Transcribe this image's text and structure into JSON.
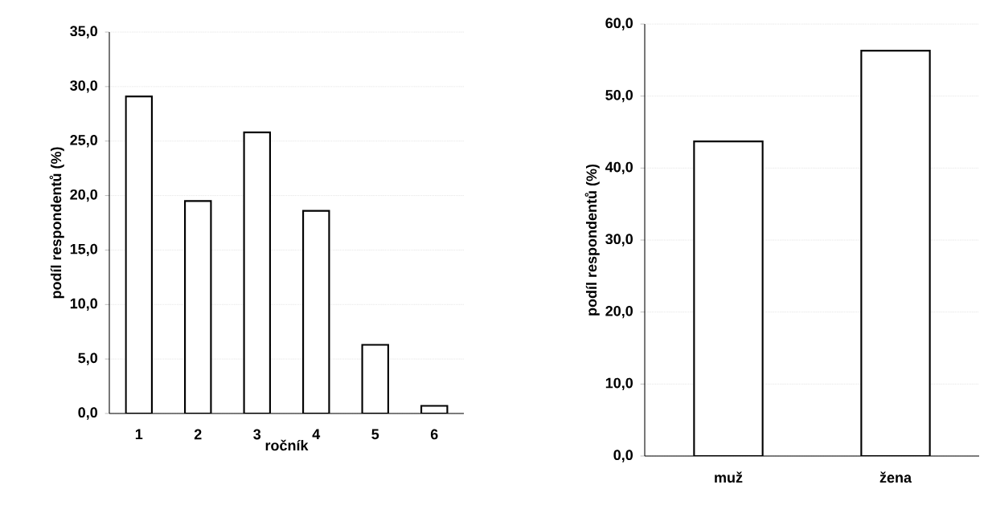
{
  "chart_data": [
    {
      "type": "bar",
      "xlabel": "ročník",
      "ylabel": "podíl respondentů (%)",
      "categories": [
        "1",
        "2",
        "3",
        "4",
        "5",
        "6"
      ],
      "values": [
        29.1,
        19.5,
        25.8,
        18.6,
        6.3,
        0.7
      ],
      "color": "#ffffff",
      "ylim": [
        0,
        35
      ],
      "yticks": [
        {
          "value": 0,
          "label": "0,0"
        },
        {
          "value": 5,
          "label": "5,0"
        },
        {
          "value": 10,
          "label": "10,0"
        },
        {
          "value": 15,
          "label": "15,0"
        },
        {
          "value": 20,
          "label": "20,0"
        },
        {
          "value": 25,
          "label": "25,0"
        },
        {
          "value": 30,
          "label": "30,0"
        },
        {
          "value": 35,
          "label": "35,0"
        }
      ],
      "grid": "y"
    },
    {
      "type": "bar",
      "ylabel": "podíl respondentů (%)",
      "categories": [
        "muž",
        "žena"
      ],
      "values": [
        43.7,
        56.3
      ],
      "color": "#ffffff",
      "ylim": [
        0,
        60
      ],
      "yticks": [
        {
          "value": 0,
          "label": "0,0"
        },
        {
          "value": 10,
          "label": "10,0"
        },
        {
          "value": 20,
          "label": "20,0"
        },
        {
          "value": 30,
          "label": "30,0"
        },
        {
          "value": 40,
          "label": "40,0"
        },
        {
          "value": 50,
          "label": "50,0"
        },
        {
          "value": 60,
          "label": "60,0"
        }
      ],
      "grid": "y"
    }
  ]
}
